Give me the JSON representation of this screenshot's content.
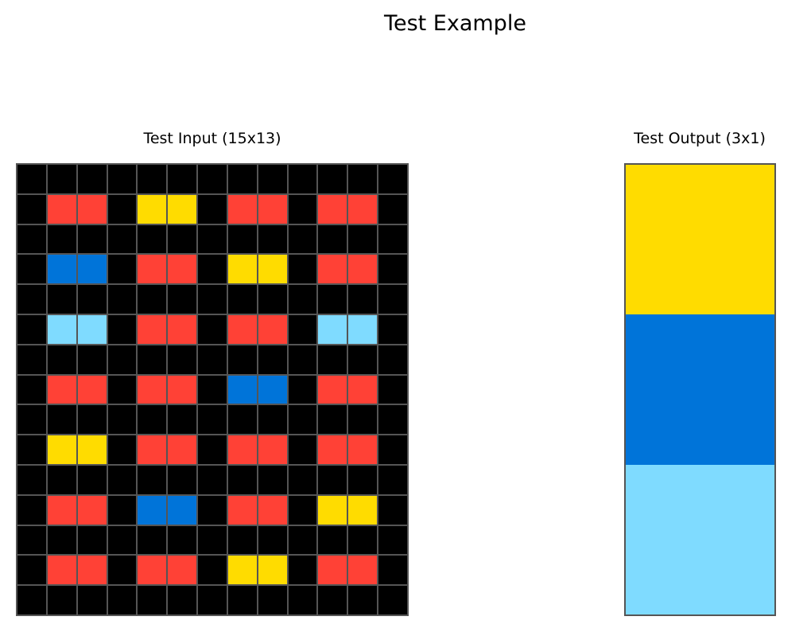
{
  "title": "Test Example",
  "input": {
    "title": "Test Input (15x13)",
    "rows": [
      [
        0,
        0,
        0,
        0,
        0,
        0,
        0,
        0,
        0,
        0,
        0,
        0,
        0
      ],
      [
        0,
        2,
        2,
        0,
        4,
        4,
        0,
        2,
        2,
        0,
        2,
        2,
        0
      ],
      [
        0,
        0,
        0,
        0,
        0,
        0,
        0,
        0,
        0,
        0,
        0,
        0,
        0
      ],
      [
        0,
        1,
        1,
        0,
        2,
        2,
        0,
        4,
        4,
        0,
        2,
        2,
        0
      ],
      [
        0,
        0,
        0,
        0,
        0,
        0,
        0,
        0,
        0,
        0,
        0,
        0,
        0
      ],
      [
        0,
        8,
        8,
        0,
        2,
        2,
        0,
        2,
        2,
        0,
        8,
        8,
        0
      ],
      [
        0,
        0,
        0,
        0,
        0,
        0,
        0,
        0,
        0,
        0,
        0,
        0,
        0
      ],
      [
        0,
        2,
        2,
        0,
        2,
        2,
        0,
        1,
        1,
        0,
        2,
        2,
        0
      ],
      [
        0,
        0,
        0,
        0,
        0,
        0,
        0,
        0,
        0,
        0,
        0,
        0,
        0
      ],
      [
        0,
        4,
        4,
        0,
        2,
        2,
        0,
        2,
        2,
        0,
        2,
        2,
        0
      ],
      [
        0,
        0,
        0,
        0,
        0,
        0,
        0,
        0,
        0,
        0,
        0,
        0,
        0
      ],
      [
        0,
        2,
        2,
        0,
        1,
        1,
        0,
        2,
        2,
        0,
        4,
        4,
        0
      ],
      [
        0,
        0,
        0,
        0,
        0,
        0,
        0,
        0,
        0,
        0,
        0,
        0,
        0
      ],
      [
        0,
        2,
        2,
        0,
        2,
        2,
        0,
        4,
        4,
        0,
        2,
        2,
        0
      ],
      [
        0,
        0,
        0,
        0,
        0,
        0,
        0,
        0,
        0,
        0,
        0,
        0,
        0
      ]
    ]
  },
  "output": {
    "title": "Test Output (3x1)",
    "rows": [
      [
        4
      ],
      [
        1
      ],
      [
        8
      ]
    ]
  },
  "palette": {
    "0": "#000000",
    "1": "#0074D9",
    "2": "#FF4136",
    "4": "#FFDC00",
    "8": "#7FDBFF"
  }
}
